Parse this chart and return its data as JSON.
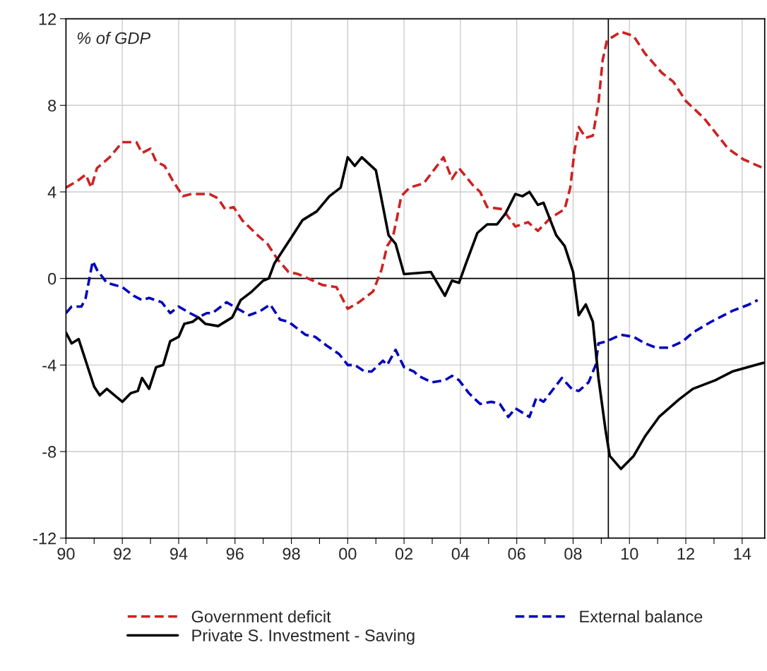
{
  "chart_data": {
    "type": "line",
    "annotations": [
      "% of GDP"
    ],
    "xlim": [
      1990,
      2014.8
    ],
    "xticks": [
      {
        "value": 1990,
        "label": "90"
      },
      {
        "value": 1991,
        "label": null
      },
      {
        "value": 1992,
        "label": "92"
      },
      {
        "value": 1993,
        "label": null
      },
      {
        "value": 1994,
        "label": "94"
      },
      {
        "value": 1995,
        "label": null
      },
      {
        "value": 1996,
        "label": "96"
      },
      {
        "value": 1997,
        "label": null
      },
      {
        "value": 1998,
        "label": "98"
      },
      {
        "value": 1999,
        "label": null
      },
      {
        "value": 2000,
        "label": "00"
      },
      {
        "value": 2001,
        "label": null
      },
      {
        "value": 2002,
        "label": "02"
      },
      {
        "value": 2003,
        "label": null
      },
      {
        "value": 2004,
        "label": "04"
      },
      {
        "value": 2005,
        "label": null
      },
      {
        "value": 2006,
        "label": "06"
      },
      {
        "value": 2007,
        "label": null
      },
      {
        "value": 2008,
        "label": "08"
      },
      {
        "value": 2009,
        "label": null
      },
      {
        "value": 2010,
        "label": "10"
      },
      {
        "value": 2011,
        "label": null
      },
      {
        "value": 2012,
        "label": "12"
      },
      {
        "value": 2013,
        "label": null
      },
      {
        "value": 2014,
        "label": "14"
      }
    ],
    "ylim": [
      -12,
      12
    ],
    "yticks": [
      -12,
      -8,
      -4,
      0,
      4,
      8,
      12
    ],
    "grid": true,
    "legend": "bottom",
    "marker": "none",
    "ref_lines": [
      {
        "axis": "y",
        "value": 0,
        "color": "#000000"
      },
      {
        "axis": "x",
        "value": 2009.25,
        "color": "#000000"
      }
    ],
    "series": [
      {
        "name": "Government deficit",
        "color": "#cc2222",
        "line_style": "dashed",
        "x": [
          1990.0,
          1990.4,
          1990.7,
          1990.9,
          1991.1,
          1991.55,
          1992.0,
          1992.5,
          1992.7,
          1993.0,
          1993.2,
          1993.5,
          1993.8,
          1994.15,
          1994.45,
          1995.1,
          1995.4,
          1995.65,
          1995.95,
          1996.25,
          1996.8,
          1997.15,
          1997.5,
          1997.9,
          1998.25,
          1999.1,
          1999.6,
          2000.0,
          2000.4,
          2000.9,
          2001.2,
          2001.4,
          2001.6,
          2001.75,
          2001.9,
          2002.2,
          2002.7,
          2003.4,
          2003.7,
          2003.95,
          2004.45,
          2004.7,
          2004.95,
          2005.5,
          2005.95,
          2006.4,
          2006.75,
          2007.2,
          2007.7,
          2007.9,
          2008.05,
          2008.2,
          2008.45,
          2008.7,
          2008.9,
          2009.05,
          2009.2,
          2009.7,
          2010.15,
          2010.55,
          2011.15,
          2011.55,
          2012.0,
          2012.65,
          2013.5,
          2014.05,
          2014.75
        ],
        "values": [
          4.2,
          4.5,
          4.8,
          4.2,
          5.1,
          5.6,
          6.3,
          6.3,
          5.8,
          6.0,
          5.4,
          5.2,
          4.5,
          3.8,
          3.9,
          3.9,
          3.7,
          3.2,
          3.3,
          2.7,
          2.0,
          1.6,
          0.9,
          0.3,
          0.2,
          -0.3,
          -0.4,
          -1.4,
          -1.1,
          -0.6,
          0.4,
          1.5,
          1.9,
          2.8,
          3.8,
          4.2,
          4.4,
          5.6,
          4.6,
          5.1,
          4.3,
          4.0,
          3.3,
          3.2,
          2.4,
          2.6,
          2.2,
          2.8,
          3.2,
          4.2,
          5.9,
          7.0,
          6.5,
          6.6,
          8.1,
          10.1,
          11.0,
          11.4,
          11.2,
          10.4,
          9.5,
          9.1,
          8.2,
          7.4,
          6.0,
          5.5,
          5.1
        ]
      },
      {
        "name": "External balance",
        "color": "#0000bb",
        "line_style": "dashed",
        "x": [
          1990.0,
          1990.2,
          1990.55,
          1990.7,
          1990.95,
          1991.1,
          1991.45,
          1992.0,
          1992.4,
          1992.7,
          1992.95,
          1993.4,
          1993.7,
          1994.0,
          1994.4,
          1994.7,
          1995.0,
          1995.2,
          1995.7,
          1996.1,
          1996.5,
          1996.9,
          1997.25,
          1997.6,
          1997.9,
          1998.5,
          1998.85,
          1999.25,
          1999.7,
          2000.0,
          2000.25,
          2000.6,
          2000.85,
          2001.25,
          2001.4,
          2001.7,
          2002.0,
          2002.35,
          2002.5,
          2003.0,
          2003.45,
          2003.7,
          2003.95,
          2004.3,
          2004.7,
          2005.1,
          2005.4,
          2005.7,
          2005.95,
          2006.45,
          2006.7,
          2006.95,
          2007.6,
          2007.95,
          2008.2,
          2008.55,
          2008.8,
          2008.9,
          2009.2,
          2009.7,
          2010.15,
          2010.55,
          2010.95,
          2011.4,
          2011.9,
          2012.25,
          2012.9,
          2013.65,
          2014.25,
          2014.55
        ],
        "values": [
          -1.6,
          -1.3,
          -1.3,
          -0.9,
          0.8,
          0.4,
          -0.2,
          -0.4,
          -0.8,
          -1.0,
          -0.9,
          -1.1,
          -1.6,
          -1.3,
          -1.6,
          -1.8,
          -1.6,
          -1.6,
          -1.1,
          -1.4,
          -1.7,
          -1.5,
          -1.2,
          -1.9,
          -2.0,
          -2.6,
          -2.7,
          -3.1,
          -3.5,
          -4.0,
          -4.0,
          -4.3,
          -4.3,
          -3.8,
          -4.0,
          -3.3,
          -4.1,
          -4.3,
          -4.5,
          -4.8,
          -4.7,
          -4.5,
          -4.7,
          -5.3,
          -5.8,
          -5.7,
          -5.8,
          -6.4,
          -6.0,
          -6.4,
          -5.5,
          -5.7,
          -4.6,
          -5.1,
          -5.2,
          -4.8,
          -4.0,
          -3.0,
          -2.9,
          -2.6,
          -2.7,
          -3.0,
          -3.2,
          -3.2,
          -2.9,
          -2.5,
          -2.0,
          -1.5,
          -1.2,
          -1.0
        ]
      },
      {
        "name": "Private S. Investment - Saving",
        "color": "#000000",
        "line_style": "solid",
        "x": [
          1990.0,
          1990.2,
          1990.45,
          1990.7,
          1991.0,
          1991.2,
          1991.45,
          1992.0,
          1992.3,
          1992.55,
          1992.7,
          1992.95,
          1993.2,
          1993.45,
          1993.7,
          1994.0,
          1994.2,
          1994.5,
          1994.7,
          1994.95,
          1995.4,
          1995.9,
          1996.2,
          1996.6,
          1997.0,
          1997.2,
          1997.4,
          1997.75,
          1998.0,
          1998.4,
          1998.9,
          1999.35,
          1999.75,
          2000.0,
          2000.25,
          2000.5,
          2001.0,
          2001.45,
          2001.7,
          2002.0,
          2002.95,
          2003.45,
          2003.7,
          2003.95,
          2004.2,
          2004.6,
          2004.95,
          2005.3,
          2005.6,
          2005.95,
          2006.2,
          2006.45,
          2006.75,
          2006.95,
          2007.4,
          2007.7,
          2008.0,
          2008.2,
          2008.45,
          2008.7,
          2008.9,
          2009.15,
          2009.3,
          2009.7,
          2010.15,
          2010.55,
          2011.05,
          2011.75,
          2012.25,
          2013.05,
          2013.65,
          2014.75
        ],
        "values": [
          -2.5,
          -3.0,
          -2.8,
          -3.8,
          -5.0,
          -5.4,
          -5.1,
          -5.7,
          -5.3,
          -5.2,
          -4.6,
          -5.1,
          -4.1,
          -4.0,
          -2.9,
          -2.7,
          -2.1,
          -2.0,
          -1.8,
          -2.1,
          -2.2,
          -1.8,
          -1.0,
          -0.6,
          -0.1,
          0.0,
          0.7,
          1.4,
          1.9,
          2.7,
          3.1,
          3.8,
          4.2,
          5.6,
          5.2,
          5.6,
          5.0,
          2.0,
          1.6,
          0.2,
          0.3,
          -0.8,
          -0.1,
          -0.2,
          0.7,
          2.1,
          2.5,
          2.5,
          3.0,
          3.9,
          3.8,
          4.0,
          3.4,
          3.5,
          2.0,
          1.5,
          0.3,
          -1.7,
          -1.2,
          -2.0,
          -4.6,
          -7.0,
          -8.2,
          -8.8,
          -8.2,
          -7.3,
          -6.4,
          -5.6,
          -5.1,
          -4.7,
          -4.3,
          -3.9
        ]
      }
    ]
  }
}
